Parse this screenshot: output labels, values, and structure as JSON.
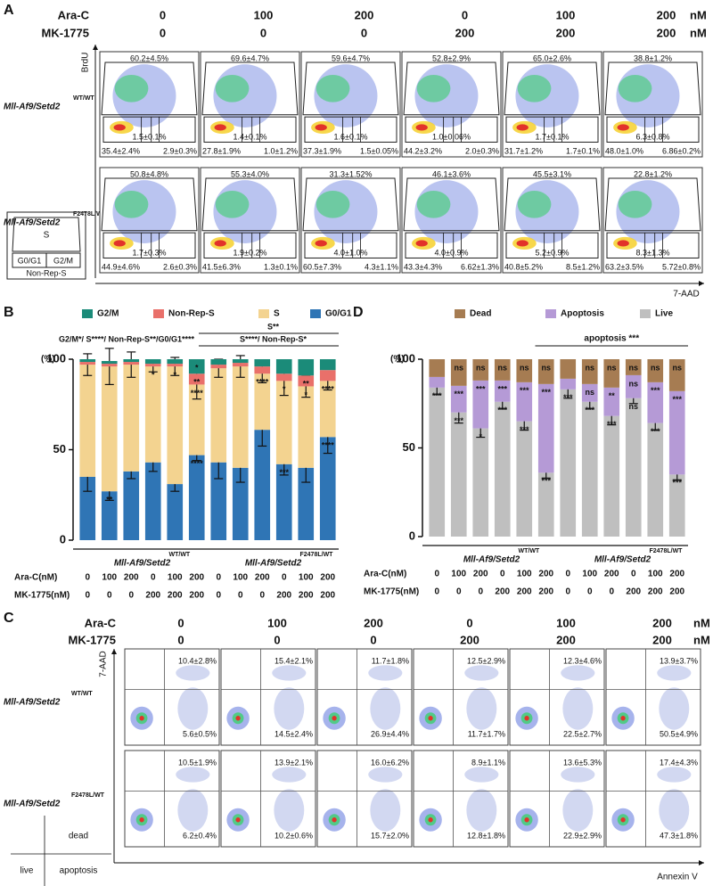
{
  "panel_a": {
    "label": "A",
    "drug1": "Ara-C",
    "drug2": "MK-1775",
    "doses1": [
      "0",
      "100",
      "200",
      "0",
      "100",
      "200"
    ],
    "doses2": [
      "0",
      "0",
      "0",
      "200",
      "200",
      "200"
    ],
    "unit": "nM",
    "y_axis": "BrdU",
    "x_axis": "7-AAD",
    "rows": [
      {
        "genotype": "Mll-Af9/Setd2",
        "allele": "WT/WT",
        "plots": [
          {
            "s": "60.2±4.5%",
            "g0g1": "35.4±2.4%",
            "nonrep": "1.5±0.1%",
            "g2m": "2.9±0.3%"
          },
          {
            "s": "69.6±4.7%",
            "g0g1": "27.8±1.9%",
            "nonrep": "1.4±0.1%",
            "g2m": "1.0±1.2%"
          },
          {
            "s": "59.6±4.7%",
            "g0g1": "37.3±1.9%",
            "nonrep": "1.6±0.1%",
            "g2m": "1.5±0.05%"
          },
          {
            "s": "52.8±2.9%",
            "g0g1": "44.2±3.2%",
            "nonrep": "1.0±0.06%",
            "g2m": "2.0±0.3%"
          },
          {
            "s": "65.0±2.6%",
            "g0g1": "31.7±1.2%",
            "nonrep": "1.7±0.1%",
            "g2m": "1.7±0.1%"
          },
          {
            "s": "38.8±1.2%",
            "g0g1": "48.0±1.0%",
            "nonrep": "6.3±0.8%",
            "g2m": "6.86±0.2%"
          }
        ]
      },
      {
        "genotype": "Mll-Af9/Setd2",
        "allele": "F2478L/WT",
        "plots": [
          {
            "s": "50.8±4.8%",
            "g0g1": "44.9±4.6%",
            "nonrep": "1.7±0.3%",
            "g2m": "2.6±0.3%"
          },
          {
            "s": "55.3±4.0%",
            "g0g1": "41.5±6.3%",
            "nonrep": "1.9±0.2%",
            "g2m": "1.3±0.1%"
          },
          {
            "s": "31.3±1.52%",
            "g0g1": "60.5±7.3%",
            "nonrep": "4.0±1.0%",
            "g2m": "4.3±1.1%"
          },
          {
            "s": "46.1±3.6%",
            "g0g1": "43.3±4.3%",
            "nonrep": "4.0±0.9%",
            "g2m": "6.62±1.3%"
          },
          {
            "s": "45.5±3.1%",
            "g0g1": "40.8±5.2%",
            "nonrep": "5.2±0.9%",
            "g2m": "8.5±1.2%"
          },
          {
            "s": "22.8±1.2%",
            "g0g1": "63.2±3.5%",
            "nonrep": "8.3±1.3%",
            "g2m": "5.72±0.8%"
          }
        ]
      }
    ],
    "key": {
      "s": "S",
      "g0g1": "G0/G1",
      "g2m": "G2/M",
      "nonrep": "Non-Rep-S"
    }
  },
  "chart_data": [
    {
      "type": "bar",
      "stacked": true,
      "label": "B",
      "y_label": "(%)",
      "ylim": [
        0,
        100
      ],
      "yticks": [
        0,
        50,
        100
      ],
      "series": [
        {
          "name": "G0/G1",
          "color": "#2f75b5",
          "values": [
            35,
            27,
            38,
            43,
            31,
            47,
            43,
            40,
            61,
            42,
            40,
            57
          ],
          "errors": [
            8,
            5,
            4,
            5,
            4,
            3,
            9,
            8,
            9,
            6,
            8,
            9
          ],
          "stars": [
            null,
            "**",
            null,
            null,
            null,
            "****",
            null,
            null,
            null,
            "***",
            null,
            "****"
          ]
        },
        {
          "name": "S",
          "color": "#f3d390",
          "values": [
            62,
            69,
            59,
            53,
            65,
            39,
            52,
            56,
            31,
            46,
            45,
            31
          ],
          "errors": [
            6,
            10,
            7,
            3,
            5,
            8,
            5,
            6,
            5,
            8,
            6,
            5
          ],
          "stars": [
            null,
            null,
            null,
            "*",
            "*",
            "****",
            null,
            null,
            "****",
            "*",
            "*",
            "****"
          ]
        },
        {
          "name": "Non-Rep-S",
          "color": "#e9706a",
          "values": [
            1.5,
            1.5,
            1.5,
            1.5,
            1.5,
            6,
            2,
            2,
            4,
            4,
            6,
            6
          ],
          "stars": [
            null,
            null,
            null,
            null,
            null,
            "**",
            null,
            null,
            null,
            null,
            "**",
            null
          ]
        },
        {
          "name": "G2/M",
          "color": "#1b8b79",
          "values": [
            1.5,
            1.5,
            1.5,
            2.5,
            2.5,
            8,
            3,
            2,
            4,
            8,
            9,
            6
          ],
          "stars": [
            null,
            null,
            null,
            null,
            null,
            "*",
            null,
            null,
            null,
            null,
            null,
            null
          ]
        }
      ],
      "annotations": [
        "G2/M*/ S****/ Non-Rep-S**/G0/G1****",
        "S**",
        "S****/ Non-Rep-S*"
      ],
      "row_labels": [
        "Ara-C(nM)",
        "MK-1775(nM)"
      ],
      "ara_c": [
        "0",
        "100",
        "200",
        "0",
        "100",
        "200",
        "0",
        "100",
        "200",
        "0",
        "100",
        "200"
      ],
      "mk1775": [
        "0",
        "0",
        "0",
        "200",
        "200",
        "200",
        "0",
        "0",
        "0",
        "200",
        "200",
        "200"
      ],
      "groups": [
        {
          "genotype": "Mll-Af9/Setd2",
          "allele": "WT/WT"
        },
        {
          "genotype": "Mll-Af9/Setd2",
          "allele": "F2478L/WT"
        }
      ]
    },
    {
      "type": "bar",
      "stacked": true,
      "label": "D",
      "y_label": "(%)",
      "ylim": [
        0,
        100
      ],
      "yticks": [
        0,
        50,
        100
      ],
      "series": [
        {
          "name": "Live",
          "color": "#bfbfbf",
          "values": [
            84,
            70,
            61,
            76,
            65,
            36,
            83,
            76,
            68,
            78,
            64,
            35
          ],
          "errors": [
            4,
            6,
            5,
            4,
            5,
            3,
            5,
            4,
            5,
            3,
            4,
            3
          ],
          "stars": [
            "***",
            "***",
            "*",
            "***",
            "***",
            "***",
            "***",
            "***",
            "***",
            "ns",
            "***",
            "***"
          ]
        },
        {
          "name": "Apoptosis",
          "color": "#b59ad6",
          "values": [
            6,
            15,
            27,
            12,
            22,
            50,
            6,
            10,
            16,
            13,
            23,
            47
          ],
          "stars": [
            null,
            "***",
            "***",
            "***",
            "***",
            "***",
            null,
            "ns",
            "**",
            "ns",
            "***",
            "***"
          ]
        },
        {
          "name": "Dead",
          "color": "#a67c52",
          "values": [
            10,
            15,
            12,
            12,
            13,
            14,
            11,
            14,
            16,
            9,
            13,
            18
          ],
          "stars": [
            null,
            "ns",
            "ns",
            "ns",
            "ns",
            "ns",
            null,
            "ns",
            "ns",
            "ns",
            "ns",
            "ns"
          ]
        }
      ],
      "annotations": [
        "apoptosis ***"
      ],
      "row_labels": [
        "Ara-C(nM)",
        "MK-1775(nM)"
      ],
      "ara_c": [
        "0",
        "100",
        "200",
        "0",
        "100",
        "200",
        "0",
        "100",
        "200",
        "0",
        "100",
        "200"
      ],
      "mk1775": [
        "0",
        "0",
        "0",
        "200",
        "200",
        "200",
        "0",
        "0",
        "0",
        "200",
        "200",
        "200"
      ],
      "groups": [
        {
          "genotype": "Mll-Af9/Setd2",
          "allele": "WT/WT"
        },
        {
          "genotype": "Mll-Af9/Setd2",
          "allele": "F2478L/WT"
        }
      ]
    }
  ],
  "panel_c": {
    "label": "C",
    "drug1": "Ara-C",
    "drug2": "MK-1775",
    "doses1": [
      "0",
      "100",
      "200",
      "0",
      "100",
      "200"
    ],
    "doses2": [
      "0",
      "0",
      "0",
      "200",
      "200",
      "200"
    ],
    "unit": "nM",
    "y_axis": "7-AAD",
    "x_axis": "Annexin V",
    "rows": [
      {
        "genotype": "Mll-Af9/Setd2",
        "allele": "WT/WT",
        "plots": [
          {
            "dead": "10.4±2.8%",
            "apoptosis": "5.6±0.5%"
          },
          {
            "dead": "15.4±2.1%",
            "apoptosis": "14.5±2.4%"
          },
          {
            "dead": "11.7±1.8%",
            "apoptosis": "26.9±4.4%"
          },
          {
            "dead": "12.5±2.9%",
            "apoptosis": "11.7±1.7%"
          },
          {
            "dead": "12.3±4.6%",
            "apoptosis": "22.5±2.7%"
          },
          {
            "dead": "13.9±3.7%",
            "apoptosis": "50.5±4.9%"
          }
        ]
      },
      {
        "genotype": "Mll-Af9/Setd2",
        "allele": "F2478L/WT",
        "plots": [
          {
            "dead": "10.5±1.9%",
            "apoptosis": "6.2±0.4%"
          },
          {
            "dead": "13.9±2.1%",
            "apoptosis": "10.2±0.6%"
          },
          {
            "dead": "16.0±6.2%",
            "apoptosis": "15.7±2.0%"
          },
          {
            "dead": "8.9±1.1%",
            "apoptosis": "12.8±1.8%"
          },
          {
            "dead": "13.6±5.3%",
            "apoptosis": "22.9±2.9%"
          },
          {
            "dead": "17.4±4.3%",
            "apoptosis": "47.3±1.8%"
          }
        ]
      }
    ],
    "key": {
      "dead": "dead",
      "live": "live",
      "apoptosis": "apoptosis"
    }
  }
}
